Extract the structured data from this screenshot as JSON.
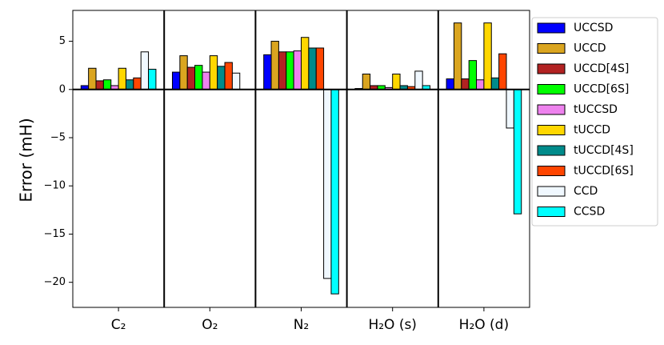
{
  "chart_data": {
    "type": "bar",
    "ylabel": "Error (mH)",
    "categories": [
      "C₂",
      "O₂",
      "N₂",
      "H₂O (s)",
      "H₂O (d)"
    ],
    "series": [
      {
        "name": "UCCSD",
        "color": "#0000ff",
        "values": [
          0.4,
          1.8,
          3.6,
          0.1,
          1.1
        ]
      },
      {
        "name": "UCCD",
        "color": "#daa520",
        "values": [
          2.2,
          3.5,
          5.0,
          1.6,
          6.9
        ]
      },
      {
        "name": "UCCD[4S]",
        "color": "#b22222",
        "values": [
          0.9,
          2.3,
          3.9,
          0.4,
          1.1
        ]
      },
      {
        "name": "UCCD[6S]",
        "color": "#00ff00",
        "values": [
          1.0,
          2.5,
          3.9,
          0.4,
          3.0
        ]
      },
      {
        "name": "tUCCSD",
        "color": "#ee82ee",
        "values": [
          0.4,
          1.8,
          4.0,
          0.2,
          1.0
        ]
      },
      {
        "name": "tUCCD",
        "color": "#ffd700",
        "values": [
          2.2,
          3.5,
          5.4,
          1.6,
          6.9
        ]
      },
      {
        "name": "tUCCD[4S]",
        "color": "#008b8b",
        "values": [
          1.0,
          2.4,
          4.3,
          0.4,
          1.2
        ]
      },
      {
        "name": "tUCCD[6S]",
        "color": "#ff4500",
        "values": [
          1.2,
          2.8,
          4.3,
          0.3,
          3.7
        ]
      },
      {
        "name": "CCD",
        "color": "#f0f8ff",
        "values": [
          3.9,
          1.7,
          -19.6,
          1.9,
          -4.0
        ]
      },
      {
        "name": "CCSD",
        "color": "#00ffff",
        "values": [
          2.1,
          0.0,
          -21.2,
          0.4,
          -12.9
        ]
      }
    ],
    "ylim": [
      -22.6,
      8.2
    ],
    "yticks": [
      {
        "value": -20,
        "label": "−20"
      },
      {
        "value": -15,
        "label": "−15"
      },
      {
        "value": -10,
        "label": "−10"
      },
      {
        "value": -5,
        "label": "−5"
      },
      0,
      5
    ],
    "legend": "right"
  }
}
